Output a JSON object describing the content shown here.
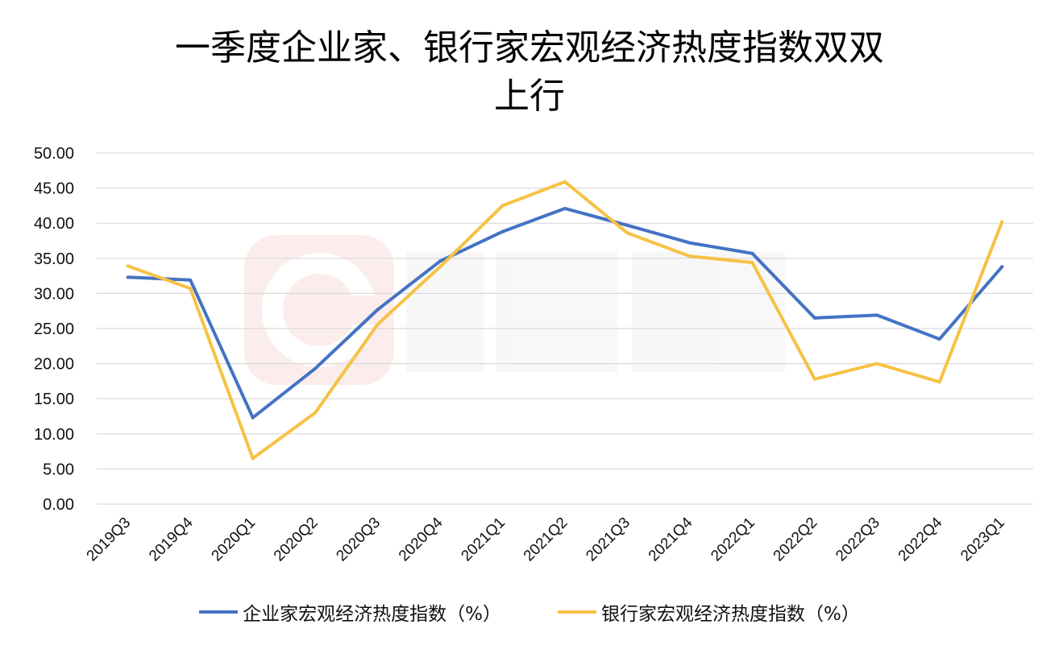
{
  "chart_data": {
    "type": "line",
    "title_lines": [
      "一季度企业家、银行家宏观经济热度指数双双",
      "上行"
    ],
    "categories": [
      "2019Q3",
      "2019Q4",
      "2020Q1",
      "2020Q2",
      "2020Q3",
      "2020Q4",
      "2021Q1",
      "2021Q2",
      "2021Q3",
      "2021Q4",
      "2022Q1",
      "2022Q2",
      "2022Q3",
      "2022Q4",
      "2023Q1"
    ],
    "series": [
      {
        "name": "企业家宏观经济热度指数（%）",
        "color": "#4472C4",
        "values": [
          32.3,
          31.9,
          12.3,
          19.3,
          27.7,
          34.6,
          38.8,
          42.1,
          39.7,
          37.2,
          35.7,
          26.5,
          26.9,
          23.5,
          33.8
        ]
      },
      {
        "name": "银行家宏观经济热度指数（%）",
        "color": "#F6C244",
        "values": [
          33.9,
          30.7,
          6.5,
          13.0,
          25.6,
          33.8,
          42.5,
          45.9,
          38.6,
          35.3,
          34.4,
          17.8,
          20.0,
          17.4,
          40.2
        ]
      }
    ],
    "y_ticks": [
      "0.00",
      "5.00",
      "10.00",
      "15.00",
      "20.00",
      "25.00",
      "30.00",
      "35.00",
      "40.00",
      "45.00",
      "50.00"
    ],
    "ylim": [
      0,
      50
    ],
    "grid": true,
    "legend_position": "bottom"
  }
}
